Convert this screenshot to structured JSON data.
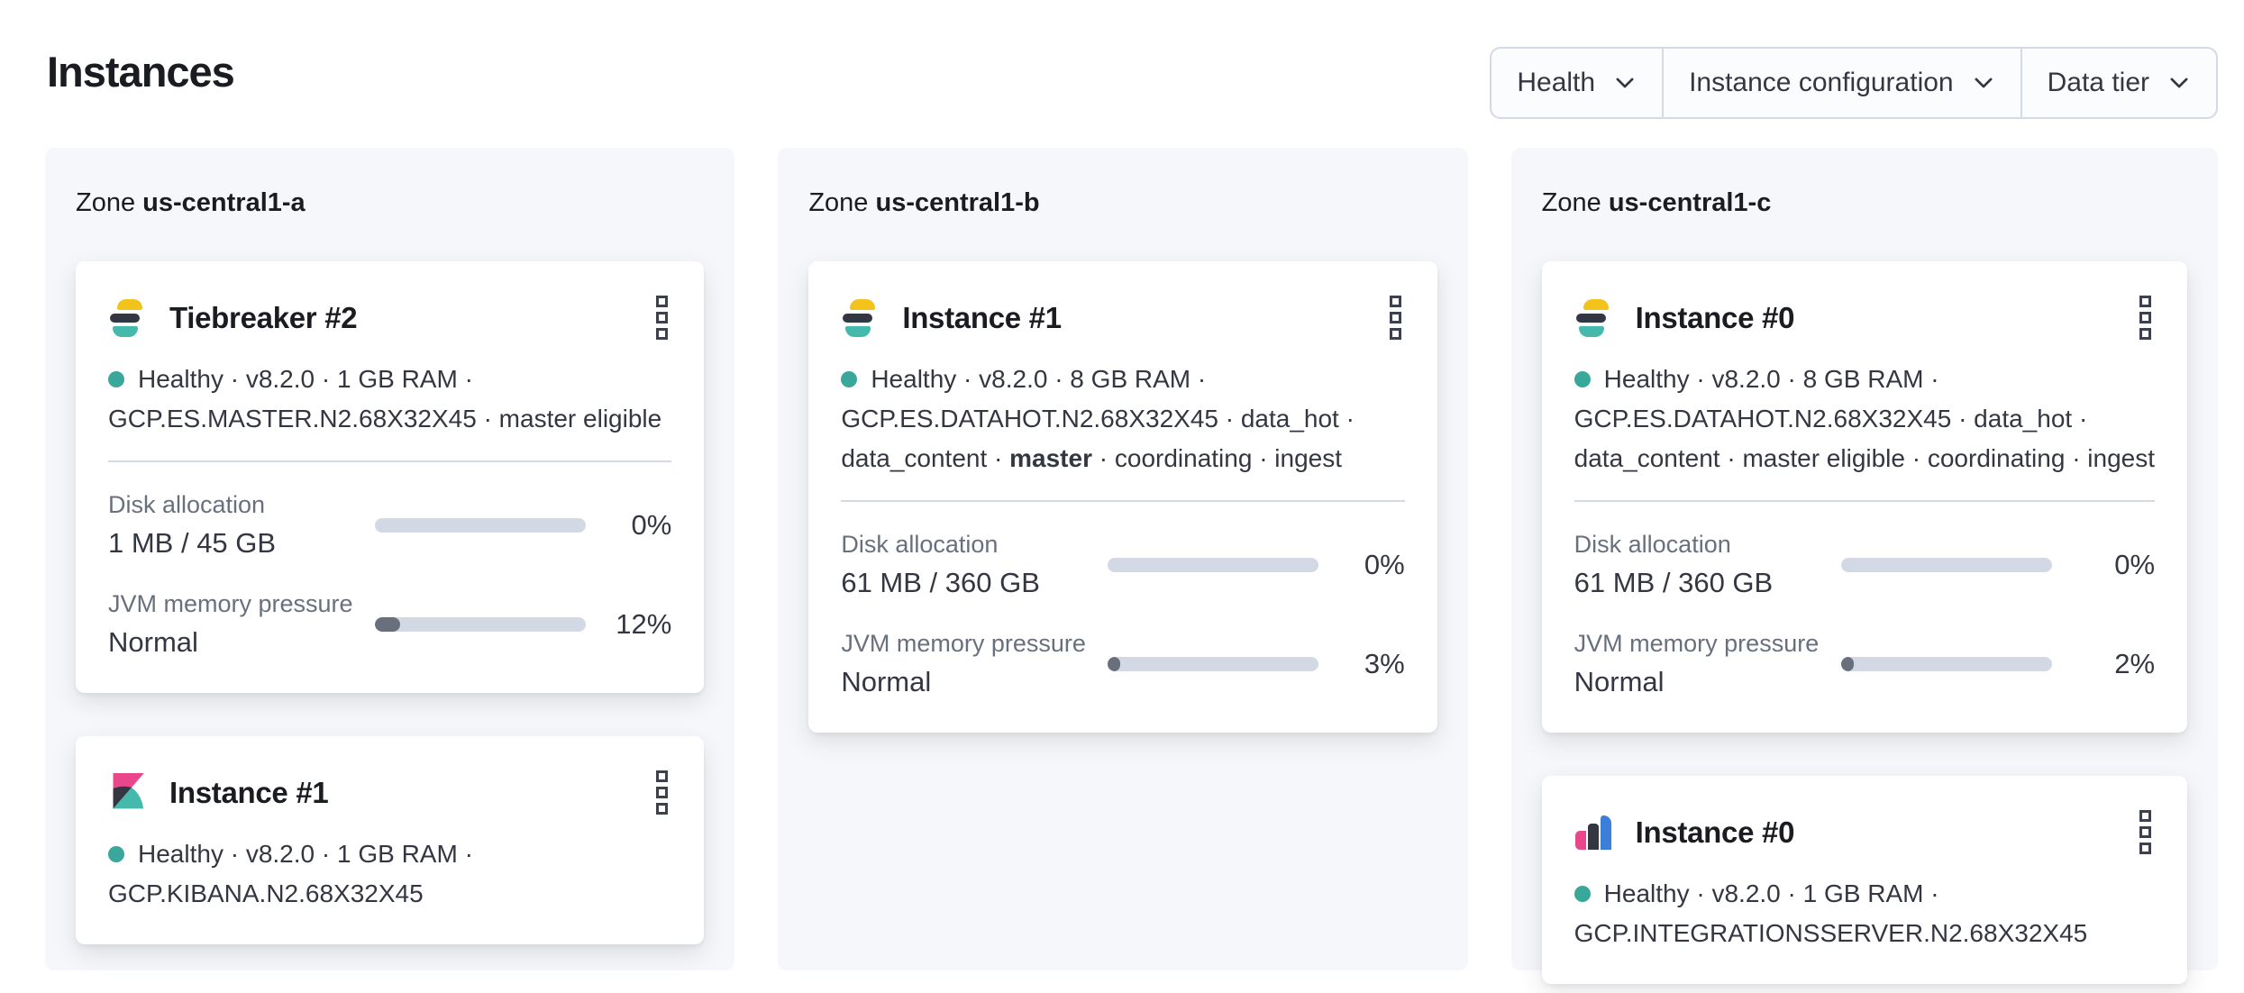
{
  "page": {
    "title": "Instances"
  },
  "filters": {
    "health": {
      "label": "Health"
    },
    "instance_configuration": {
      "label": "Instance configuration"
    },
    "data_tier": {
      "label": "Data tier"
    }
  },
  "colors": {
    "healthy_dot": "#3aa79b",
    "bar_track": "#d3d9e4",
    "bar_fill": "#69707d",
    "panel_bg": "#f6f7fa",
    "es_yellow": "#f3c31b",
    "es_dark": "#343741",
    "es_teal": "#45b9ac",
    "kibana_pink": "#e8488b",
    "integrations_blue": "#3b7fd8"
  },
  "zones": [
    {
      "label_prefix": "Zone",
      "name": "us-central1-a",
      "cards": [
        {
          "logo": "elasticsearch",
          "title": "Tiebreaker #2",
          "health": "Healthy",
          "status_lines": [
            "Healthy · v8.2.0 · 1 GB RAM ·",
            "GCP.ES.MASTER.N2.68X32X45 · master eligible"
          ],
          "metrics": [
            {
              "label": "Disk allocation",
              "value": "1 MB / 45 GB",
              "percent": 0,
              "percent_label": "0%"
            },
            {
              "label": "JVM memory pressure",
              "value": "Normal",
              "percent": 12,
              "percent_label": "12%"
            }
          ]
        },
        {
          "logo": "kibana",
          "title": "Instance #1",
          "health": "Healthy",
          "status_lines": [
            "Healthy · v8.2.0 · 1 GB RAM ·",
            "GCP.KIBANA.N2.68X32X45"
          ],
          "metrics": []
        }
      ]
    },
    {
      "label_prefix": "Zone",
      "name": "us-central1-b",
      "cards": [
        {
          "logo": "elasticsearch",
          "title": "Instance #1",
          "health": "Healthy",
          "status_lines": [
            "Healthy · v8.2.0 · 8 GB RAM ·",
            "GCP.ES.DATAHOT.N2.68X32X45 · data_hot ·",
            "data_content · **master** · coordinating · ingest"
          ],
          "metrics": [
            {
              "label": "Disk allocation",
              "value": "61 MB / 360 GB",
              "percent": 0,
              "percent_label": "0%"
            },
            {
              "label": "JVM memory pressure",
              "value": "Normal",
              "percent": 3,
              "percent_label": "3%"
            }
          ]
        }
      ]
    },
    {
      "label_prefix": "Zone",
      "name": "us-central1-c",
      "cards": [
        {
          "logo": "elasticsearch",
          "title": "Instance #0",
          "health": "Healthy",
          "status_lines": [
            "Healthy · v8.2.0 · 8 GB RAM ·",
            "GCP.ES.DATAHOT.N2.68X32X45 · data_hot ·",
            "data_content · master eligible · coordinating · ingest"
          ],
          "metrics": [
            {
              "label": "Disk allocation",
              "value": "61 MB / 360 GB",
              "percent": 0,
              "percent_label": "0%"
            },
            {
              "label": "JVM memory pressure",
              "value": "Normal",
              "percent": 2,
              "percent_label": "2%"
            }
          ]
        },
        {
          "logo": "integrations-server",
          "title": "Instance #0",
          "health": "Healthy",
          "status_lines": [
            "Healthy · v8.2.0 · 1 GB RAM ·",
            "GCP.INTEGRATIONSSERVER.N2.68X32X45"
          ],
          "metrics": []
        }
      ]
    }
  ]
}
